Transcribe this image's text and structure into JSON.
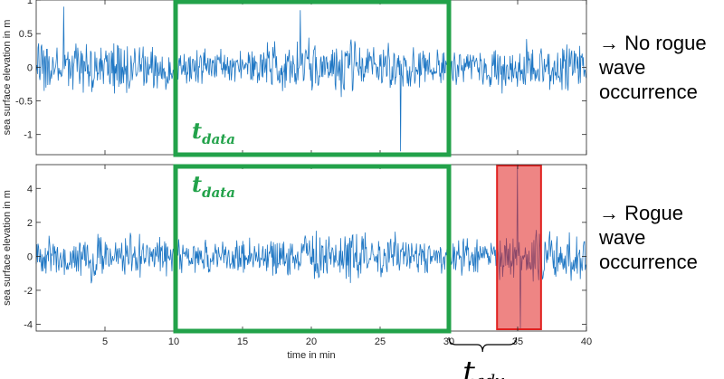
{
  "chart_data": [
    {
      "type": "line",
      "panel": "top",
      "ylabel": "sea surface elevation in m",
      "xlim": [
        0,
        40
      ],
      "ylim": [
        -1.3,
        1.0
      ],
      "xticks": [
        5,
        10,
        15,
        20,
        25,
        30,
        35,
        40
      ],
      "yticks": [
        -1,
        -0.5,
        0,
        0.5,
        1
      ],
      "ytick_labels": [
        "-1",
        "-0.5",
        "0",
        "0.5",
        "1"
      ],
      "series_color": "#1f77c4",
      "series_amplitude": 0.45,
      "series_peaks": [
        {
          "x": 26.5,
          "y": -1.25
        },
        {
          "x": 2.0,
          "y": 0.9
        },
        {
          "x": 19.2,
          "y": 0.85
        }
      ],
      "annotations": {
        "data_window": {
          "x": [
            10,
            30
          ],
          "label_main": "t",
          "label_sub": "data",
          "color": "#22a24a"
        }
      }
    },
    {
      "type": "line",
      "panel": "bottom",
      "ylabel": "sea surface elevation in m",
      "xlabel": "time in min",
      "xlim": [
        0,
        40
      ],
      "ylim": [
        -4.4,
        5.4
      ],
      "xticks": [
        5,
        10,
        15,
        20,
        25,
        30,
        35,
        40
      ],
      "xtick_labels": [
        "5",
        "10",
        "15",
        "20",
        "25",
        "30",
        "35",
        "40"
      ],
      "yticks": [
        -4,
        -2,
        0,
        2,
        4
      ],
      "ytick_labels": [
        "-4",
        "-2",
        "0",
        "2",
        "4"
      ],
      "series_color": "#1f77c4",
      "series_amplitude": 1.6,
      "series_peaks": [
        {
          "x": 35.0,
          "y": 5.3
        },
        {
          "x": 35.2,
          "y": -4.3
        }
      ],
      "annotations": {
        "data_window": {
          "x": [
            10,
            30
          ],
          "label_main": "t",
          "label_sub": "data",
          "color": "#22a24a"
        },
        "rogue_window": {
          "x": [
            33.5,
            36.7
          ],
          "color": "#e0211f"
        },
        "adv_brace": {
          "x": [
            30,
            34.9
          ],
          "label_main": "t",
          "label_sub": "adv"
        }
      }
    }
  ],
  "notes": {
    "top": {
      "line1": "→ No rogue",
      "line2": "wave",
      "line3": "occurrence"
    },
    "bottom": {
      "line1": "→ Rogue",
      "line2": "wave",
      "line3": "occurrence"
    }
  }
}
